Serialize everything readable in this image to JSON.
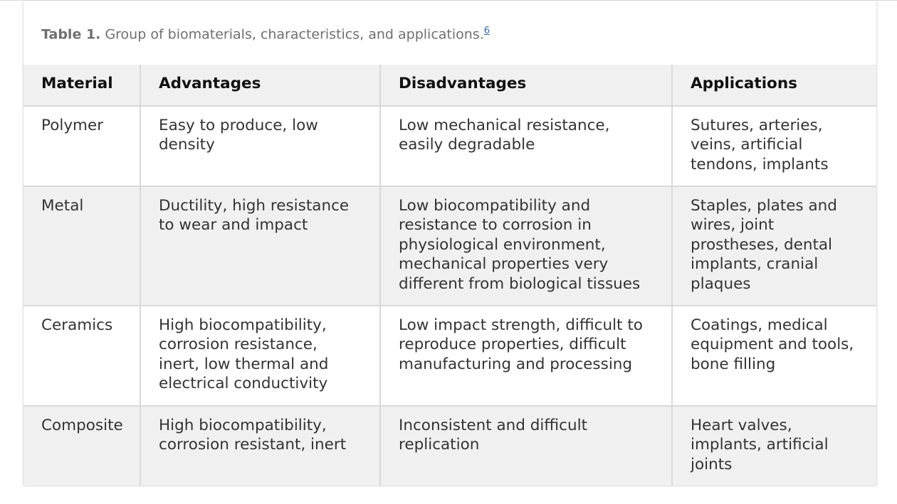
{
  "caption": {
    "label": "Table 1.",
    "text": "Group of biomaterials, characteristics, and applications.",
    "reference": "6"
  },
  "table": {
    "headers": [
      "Material",
      "Advantages",
      "Disadvantages",
      "Applications"
    ],
    "rows": [
      {
        "material": "Polymer",
        "advantages": "Easy to produce, low density",
        "disadvantages": "Low mechanical resistance, easily degradable",
        "applications": "Sutures, arteries, veins, artificial tendons, implants"
      },
      {
        "material": "Metal",
        "advantages": "Ductility, high resistance to wear and impact",
        "disadvantages": "Low biocompatibility and resistance to corrosion in physiological environment, mechanical properties very different from biological tissues",
        "applications": "Staples, plates and wires, joint prostheses, dental implants, cranial plaques"
      },
      {
        "material": "Ceramics",
        "advantages": "High biocompatibility, corrosion resistance, inert, low thermal and electrical conductivity",
        "disadvantages": "Low impact strength, difficult to reproduce properties, difficult manufacturing and processing",
        "applications": "Coatings, medical equipment and tools, bone filling"
      },
      {
        "material": "Composite",
        "advantages": "High biocompatibility, corrosion resistant, inert",
        "disadvantages": "Inconsistent and difficult replication",
        "applications": "Heart valves, implants, artificial joints"
      }
    ]
  },
  "colors": {
    "header_bg": "#f0f0f0",
    "shaded_row_bg": "#f0f0f0",
    "grid_line": "#d9d9d9",
    "link": "#2a66b3"
  }
}
